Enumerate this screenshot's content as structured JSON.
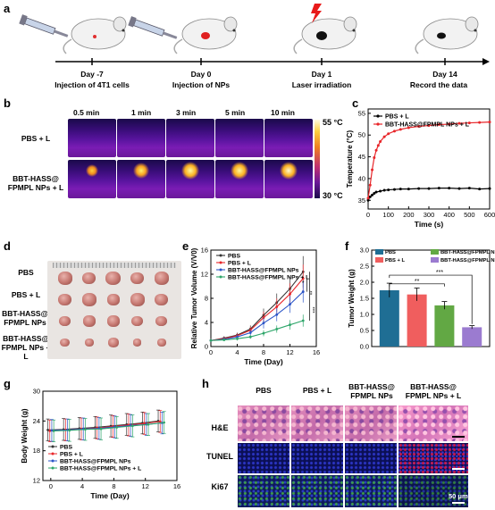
{
  "panel_a": {
    "label": "a",
    "events": [
      {
        "day": "Day -7",
        "desc": "Injection of 4T1 cells"
      },
      {
        "day": "Day 0",
        "desc": "Injection of NPs"
      },
      {
        "day": "Day 1",
        "desc": "Laser irradiation"
      },
      {
        "day": "Day 14",
        "desc": "Record the data"
      }
    ]
  },
  "panel_b": {
    "label": "b",
    "times": [
      "0.5 min",
      "1 min",
      "3 min",
      "5 min",
      "10 min"
    ],
    "rows": [
      {
        "line1": "PBS + L",
        "line2": ""
      },
      {
        "line1": "BBT-HASS@",
        "line2": "FPMPL NPs + L"
      }
    ],
    "scale_max": "55 °C",
    "scale_min": "30 °C"
  },
  "panel_c": {
    "label": "c",
    "chart_data": {
      "type": "line",
      "xlabel": "Time (s)",
      "ylabel": "Temperature (°C)",
      "xlim": [
        0,
        600
      ],
      "ylim": [
        33,
        56
      ],
      "xticks": [
        0,
        100,
        200,
        300,
        400,
        500,
        600
      ],
      "yticks": [
        35,
        40,
        45,
        50,
        55
      ],
      "legend": "top-left",
      "series": [
        {
          "name": "PBS + L",
          "color": "#000000",
          "x": [
            0,
            10,
            20,
            30,
            40,
            60,
            80,
            100,
            130,
            160,
            200,
            250,
            300,
            350,
            400,
            450,
            500,
            550,
            600
          ],
          "y": [
            35.0,
            35.8,
            36.2,
            36.6,
            36.9,
            37.1,
            37.3,
            37.4,
            37.5,
            37.6,
            37.6,
            37.7,
            37.7,
            37.8,
            37.8,
            37.7,
            37.8,
            37.6,
            37.7
          ]
        },
        {
          "name": "BBT-HASS@FPMPL NPs + L",
          "color": "#e8262a",
          "x": [
            0,
            10,
            20,
            30,
            40,
            50,
            60,
            80,
            100,
            130,
            160,
            200,
            250,
            300,
            350,
            400,
            450,
            500,
            550,
            600
          ],
          "y": [
            35.5,
            38.5,
            42,
            44.8,
            46.5,
            47.6,
            48.5,
            49.6,
            50.3,
            50.9,
            51.3,
            51.7,
            52.0,
            52.2,
            52.4,
            52.5,
            52.7,
            52.8,
            52.9,
            53.0
          ]
        }
      ]
    }
  },
  "panel_d": {
    "label": "d",
    "rows": [
      {
        "line1": "PBS",
        "line2": ""
      },
      {
        "line1": "PBS + L",
        "line2": ""
      },
      {
        "line1": "BBT-HASS@",
        "line2": "FPMPL NPs"
      },
      {
        "line1": "BBT-HASS@",
        "line2": "FPMPL NPs + L"
      }
    ]
  },
  "panel_e": {
    "label": "e",
    "chart_data": {
      "type": "line",
      "xlabel": "Time  (Day)",
      "ylabel": "Relative Tumor Volume (V/V0)",
      "xlim": [
        0,
        16
      ],
      "ylim": [
        0,
        16
      ],
      "xticks": [
        0,
        4,
        8,
        12,
        16
      ],
      "yticks": [
        0,
        4,
        8,
        12,
        16
      ],
      "legend": "top-left",
      "annotations": [
        "*",
        "**",
        "***"
      ],
      "x": [
        0,
        2,
        4,
        6,
        8,
        10,
        12,
        14
      ],
      "series": [
        {
          "name": "PBS",
          "color": "#333333",
          "values": [
            1,
            1.4,
            1.9,
            2.9,
            5.2,
            7.3,
            9.6,
            12.4
          ],
          "err": [
            0.2,
            0.3,
            0.4,
            0.6,
            1.1,
            1.5,
            1.9,
            2.6
          ]
        },
        {
          "name": "PBS + L",
          "color": "#e8262a",
          "values": [
            1,
            1.3,
            1.8,
            2.7,
            4.8,
            6.6,
            8.7,
            11.3
          ],
          "err": [
            0.2,
            0.3,
            0.4,
            0.6,
            1.0,
            1.4,
            1.8,
            2.3
          ]
        },
        {
          "name": "BBT-HASS@FPMPL NPs",
          "color": "#2b55c8",
          "values": [
            1,
            1.2,
            1.6,
            2.3,
            3.9,
            5.3,
            7.0,
            9.1
          ],
          "err": [
            0.2,
            0.3,
            0.4,
            0.5,
            0.9,
            1.1,
            1.4,
            1.8
          ]
        },
        {
          "name": "BBT-HASS@FPMPL NPs + L",
          "color": "#2ea66a",
          "values": [
            1,
            1.1,
            1.3,
            1.6,
            2.2,
            2.9,
            3.6,
            4.3
          ],
          "err": [
            0.2,
            0.2,
            0.3,
            0.3,
            0.5,
            0.6,
            0.8,
            1.0
          ]
        }
      ]
    }
  },
  "panel_f": {
    "label": "f",
    "chart_data": {
      "type": "bar",
      "ylabel": "Tumor Weight (g)",
      "ylim": [
        0,
        3
      ],
      "yticks": [
        0.0,
        0.5,
        1.0,
        1.5,
        2.0,
        2.5,
        3.0
      ],
      "legend": "top",
      "annotations": [
        "**",
        "***"
      ],
      "categories": [
        "PBS",
        "PBS + L",
        "BBT-HASS@FPMPL NPs",
        "BBT-HASS@FPMPL NPs + L"
      ],
      "colors": [
        "#1f6e94",
        "#f05e5e",
        "#62a844",
        "#9b7bd0"
      ],
      "values": [
        1.75,
        1.62,
        1.28,
        0.6
      ],
      "err": [
        0.22,
        0.2,
        0.12,
        0.05
      ]
    }
  },
  "panel_g": {
    "label": "g",
    "chart_data": {
      "type": "line",
      "xlabel": "Time  (Day)",
      "ylabel": "Body Weight (g)",
      "xlim": [
        -1,
        16
      ],
      "ylim": [
        12,
        30
      ],
      "xticks": [
        0,
        4,
        8,
        12,
        16
      ],
      "yticks": [
        12,
        18,
        24,
        30
      ],
      "legend": "bottom-left",
      "x": [
        0,
        2,
        4,
        6,
        8,
        10,
        12,
        14
      ],
      "series": [
        {
          "name": "PBS",
          "color": "#333333",
          "values": [
            22.2,
            22.3,
            22.5,
            22.7,
            23.0,
            23.3,
            23.6,
            24.0
          ]
        },
        {
          "name": "PBS + L",
          "color": "#e8262a",
          "values": [
            22.0,
            22.2,
            22.4,
            22.6,
            22.9,
            23.2,
            23.5,
            23.9
          ]
        },
        {
          "name": "BBT-HASS@FPMPL NPs",
          "color": "#2b55c8",
          "values": [
            22.1,
            22.2,
            22.4,
            22.5,
            22.8,
            23.1,
            23.3,
            23.6
          ]
        },
        {
          "name": "BBT-HASS@FPMPL NPs + L",
          "color": "#2ea66a",
          "values": [
            22.0,
            22.1,
            22.3,
            22.4,
            22.7,
            23.0,
            23.3,
            23.7
          ]
        }
      ],
      "err": 2.2
    }
  },
  "panel_h": {
    "label": "h",
    "cols": [
      {
        "line1": "PBS",
        "line2": ""
      },
      {
        "line1": "PBS + L",
        "line2": ""
      },
      {
        "line1": "BBT-HASS@",
        "line2": "FPMPL NPs"
      },
      {
        "line1": "BBT-HASS@",
        "line2": "FPMPL NPs + L"
      }
    ],
    "rows": [
      "H&E",
      "TUNEL",
      "Ki67"
    ],
    "scalebar": "50 μm"
  }
}
